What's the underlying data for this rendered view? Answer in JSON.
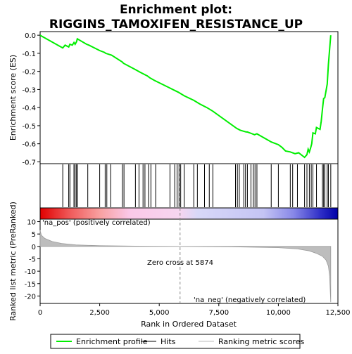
{
  "chart_data": {
    "type": "line",
    "title": "Enrichment plot: RIGGINS_TAMOXIFEN_RESISTANCE_UP",
    "es_panel": {
      "ylabel": "Enrichment score (ES)",
      "ylim": [
        -0.71,
        0.02
      ],
      "yticks": [
        0.0,
        -0.1,
        -0.2,
        -0.3,
        -0.4,
        -0.5,
        -0.6,
        -0.7
      ],
      "ytick_labels": [
        "0.0",
        "-0.1",
        "-0.2",
        "-0.3",
        "-0.4",
        "-0.5",
        "-0.6",
        "-0.7"
      ],
      "series": [
        {
          "name": "Enrichment profile",
          "color": "#00ee00",
          "x": [
            0,
            950,
            1050,
            1200,
            1250,
            1350,
            1420,
            1470,
            1530,
            1560,
            1950,
            2050,
            2500,
            2700,
            2750,
            3000,
            3450,
            3500,
            4000,
            4200,
            4500,
            4600,
            4800,
            5450,
            5800,
            6050,
            6450,
            6700,
            7000,
            7250,
            8250,
            8400,
            8650,
            8700,
            8900,
            9000,
            9100,
            9500,
            9700,
            10000,
            10150,
            10300,
            10500,
            10700,
            10850,
            11100,
            11200,
            11250,
            11300,
            11350,
            11400,
            11450,
            11550,
            11600,
            11750,
            11800,
            11850,
            11900,
            11950,
            12050,
            12100,
            12200
          ],
          "y": [
            0.0,
            -0.07,
            -0.055,
            -0.065,
            -0.05,
            -0.055,
            -0.04,
            -0.05,
            -0.035,
            -0.02,
            -0.05,
            -0.055,
            -0.085,
            -0.095,
            -0.1,
            -0.11,
            -0.148,
            -0.155,
            -0.19,
            -0.205,
            -0.225,
            -0.235,
            -0.25,
            -0.292,
            -0.315,
            -0.335,
            -0.36,
            -0.38,
            -0.4,
            -0.42,
            -0.515,
            -0.525,
            -0.535,
            -0.535,
            -0.545,
            -0.55,
            -0.545,
            -0.575,
            -0.59,
            -0.605,
            -0.62,
            -0.64,
            -0.645,
            -0.655,
            -0.65,
            -0.675,
            -0.66,
            -0.63,
            -0.645,
            -0.625,
            -0.6,
            -0.54,
            -0.545,
            -0.51,
            -0.52,
            -0.475,
            -0.41,
            -0.35,
            -0.345,
            -0.27,
            -0.16,
            0.0
          ]
        }
      ]
    },
    "hits": [
      950,
      1200,
      1250,
      1420,
      1470,
      1530,
      1560,
      2000,
      2500,
      2730,
      2800,
      2960,
      3450,
      3520,
      4000,
      4150,
      4320,
      4400,
      4550,
      4650,
      4850,
      5450,
      5650,
      5750,
      5830,
      5900,
      6050,
      6450,
      6600,
      6900,
      7100,
      7250,
      8200,
      8280,
      8360,
      8550,
      8620,
      8700,
      8850,
      8950,
      9020,
      9100,
      9700,
      10000,
      10500,
      10600,
      10800,
      11100,
      11200,
      11300,
      11380,
      11450,
      11600,
      11850,
      11900,
      11950,
      12050,
      12100,
      12200
    ],
    "ranked_panel": {
      "ylabel": "Ranked list metric (PreRanked)",
      "xlabel": "Rank in Ordered Dataset",
      "xlim": [
        0,
        12500
      ],
      "xticks": [
        0,
        2500,
        5000,
        7500,
        10000,
        12500
      ],
      "xtick_labels": [
        "0",
        "2,500",
        "5,000",
        "7,500",
        "10,000",
        "12,500"
      ],
      "ylim": [
        -23,
        11
      ],
      "yticks": [
        10,
        5,
        0,
        -5,
        -10,
        -15,
        -20
      ],
      "ytick_labels": [
        "10",
        "5",
        "0",
        "-5",
        "-10",
        "-15",
        "-20"
      ],
      "metric_x": [
        0,
        50,
        200,
        500,
        900,
        1500,
        2500,
        4000,
        5874,
        8000,
        10000,
        10800,
        11300,
        11600,
        11850,
        12000,
        12100,
        12150,
        12200
      ],
      "metric_y": [
        6.5,
        4.5,
        3.2,
        2.0,
        1.2,
        0.6,
        0.3,
        0.12,
        0.0,
        -0.15,
        -0.5,
        -1.0,
        -1.8,
        -2.8,
        -4.0,
        -5.5,
        -8.0,
        -12.0,
        -22.5
      ],
      "zero_cross_label": "Zero cross at 5874",
      "zero_cross_x": 5874,
      "pos_label": "'na_pos' (positively correlated)",
      "neg_label": "'na_neg' (negatively correlated)",
      "pos_color": "#cc0000",
      "neg_color": "#0000cc"
    },
    "legend": {
      "placement": "bottom",
      "entries": [
        {
          "label": "Enrichment profile",
          "color": "#00ee00"
        },
        {
          "label": "Hits",
          "color": "#000000"
        },
        {
          "label": "Ranking metric scores",
          "color": "#bbbbbb"
        }
      ]
    }
  }
}
